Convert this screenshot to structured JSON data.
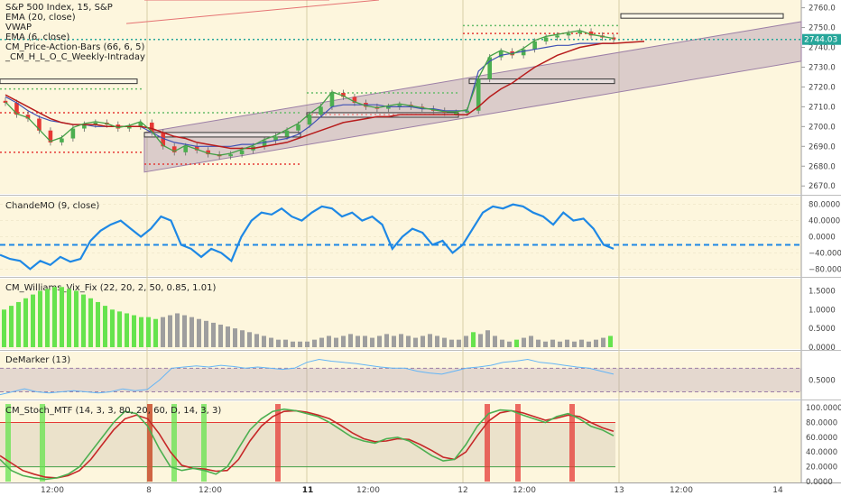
{
  "chart_data": [
    {
      "type": "candlestick",
      "panel": "main",
      "legend": [
        "S&P 500 Index, 15, S&P",
        "EMA (20, close)",
        "VWAP",
        "EMA (6, close)",
        "CM_Price-Action-Bars (66, 6, 5)",
        "_CM_H_L_O_C_Weekly-Intraday"
      ],
      "yticks": [
        2670,
        2680,
        2690,
        2700,
        2710,
        2720,
        2730,
        2740,
        2750,
        2760
      ],
      "ylim": [
        2666,
        2763
      ],
      "last_price": "2744.03",
      "colors": {
        "up": "#4caf50",
        "down": "#e53935",
        "ema20": "#b71c1c",
        "ema6": "#43a047",
        "vwap": "#3f51b5",
        "channel": "#9c7fa6",
        "last_price_bg": "#26a69a"
      },
      "close_path": [
        2712,
        2706,
        2704,
        2698,
        2692,
        2694,
        2699,
        2701,
        2702,
        2701,
        2699,
        2700,
        2702,
        2697,
        2690,
        2687,
        2690,
        2688,
        2686,
        2685,
        2686,
        2688,
        2690,
        2693,
        2695,
        2698,
        2701,
        2706,
        2710,
        2717,
        2715,
        2712,
        2710,
        2709,
        2710,
        2711,
        2710,
        2709,
        2708,
        2707,
        2707,
        2708,
        2724,
        2735,
        2738,
        2736,
        2739,
        2743,
        2745,
        2746,
        2747,
        2748,
        2746,
        2745,
        2744
      ],
      "ema20_path": [
        2716,
        2713,
        2710,
        2707,
        2704,
        2702,
        2701,
        2701,
        2701,
        2700,
        2700,
        2700,
        2700,
        2699,
        2697,
        2695,
        2694,
        2692,
        2691,
        2690,
        2689,
        2689,
        2689,
        2690,
        2691,
        2692,
        2694,
        2696,
        2698,
        2700,
        2702,
        2703,
        2704,
        2705,
        2705,
        2706,
        2706,
        2706,
        2706,
        2706,
        2706,
        2706,
        2710,
        2715,
        2719,
        2722,
        2726,
        2730,
        2733,
        2736,
        2738,
        2740,
        2741,
        2742,
        2742
      ],
      "vwap_path": [
        2715,
        2712,
        2708,
        2705,
        2703,
        2702,
        2701,
        2701,
        2700,
        2700,
        2700,
        2700,
        2700,
        2697,
        2694,
        2692,
        2691,
        2690,
        2690,
        2690,
        2690,
        2691,
        2691,
        2692,
        2693,
        2694,
        2696,
        2700,
        2705,
        2710,
        2711,
        2711,
        2711,
        2711,
        2710,
        2710,
        2710,
        2709,
        2709,
        2708,
        2708,
        2708,
        2728,
        2733,
        2736,
        2737,
        2738,
        2739,
        2740,
        2741,
        2741,
        2742,
        2742,
        2742,
        2742
      ]
    },
    {
      "type": "line",
      "panel": "chande",
      "legend": "ChandeMO (9, close)",
      "yticks": [
        "80.0000",
        "40.0000",
        "0.0000",
        "−40.0000",
        "−80.0000"
      ],
      "ylim": [
        -95,
        95
      ],
      "zero_level": -20,
      "values": [
        -45,
        -55,
        -60,
        -80,
        -60,
        -70,
        -50,
        -62,
        -55,
        -10,
        15,
        30,
        40,
        20,
        0,
        20,
        50,
        40,
        -20,
        -30,
        -50,
        -30,
        -40,
        -60,
        0,
        40,
        60,
        55,
        70,
        50,
        40,
        60,
        75,
        70,
        50,
        60,
        40,
        50,
        30,
        -30,
        0,
        20,
        10,
        -20,
        -10,
        -40,
        -20,
        20,
        60,
        75,
        70,
        80,
        75,
        60,
        50,
        30,
        60,
        40,
        45,
        20,
        -20,
        -30
      ]
    },
    {
      "type": "bar",
      "panel": "vix",
      "legend": "CM_Williams_Vix_Fix (22, 20, 2, 50, 0.85, 1.01)",
      "yticks": [
        "1.5000",
        "1.0000",
        "0.5000",
        "0.0000"
      ],
      "ylim": [
        0,
        1.75
      ],
      "colors": {
        "high": "#66e34d",
        "normal": "#9e9e9e"
      },
      "values": [
        1.0,
        1.1,
        1.2,
        1.3,
        1.4,
        1.5,
        1.55,
        1.6,
        1.6,
        1.55,
        1.5,
        1.4,
        1.3,
        1.2,
        1.1,
        1.0,
        0.95,
        0.9,
        0.85,
        0.8,
        0.8,
        0.75,
        0.8,
        0.85,
        0.9,
        0.85,
        0.8,
        0.75,
        0.7,
        0.65,
        0.6,
        0.55,
        0.5,
        0.45,
        0.4,
        0.35,
        0.3,
        0.25,
        0.2,
        0.2,
        0.15,
        0.15,
        0.15,
        0.2,
        0.25,
        0.3,
        0.25,
        0.3,
        0.35,
        0.3,
        0.3,
        0.25,
        0.3,
        0.35,
        0.3,
        0.35,
        0.3,
        0.25,
        0.3,
        0.35,
        0.3,
        0.25,
        0.2,
        0.2,
        0.3,
        0.4,
        0.35,
        0.45,
        0.3,
        0.2,
        0.15,
        0.2,
        0.25,
        0.3,
        0.2,
        0.15,
        0.2,
        0.15,
        0.2,
        0.15,
        0.2,
        0.15,
        0.2,
        0.25,
        0.3
      ],
      "high_flags": [
        1,
        1,
        1,
        1,
        1,
        1,
        1,
        1,
        1,
        1,
        1,
        1,
        1,
        1,
        1,
        1,
        1,
        1,
        1,
        1,
        1,
        1,
        0,
        0,
        0,
        0,
        0,
        0,
        0,
        0,
        0,
        0,
        0,
        0,
        0,
        0,
        0,
        0,
        0,
        0,
        0,
        0,
        0,
        0,
        0,
        0,
        0,
        0,
        0,
        0,
        0,
        0,
        0,
        0,
        0,
        0,
        0,
        0,
        0,
        0,
        0,
        0,
        0,
        0,
        0,
        1,
        0,
        0,
        0,
        0,
        0,
        1,
        0,
        0,
        0,
        0,
        0,
        0,
        0,
        0,
        0,
        0,
        0,
        0,
        1
      ]
    },
    {
      "type": "line",
      "panel": "demarker",
      "legend": "DeMarker (13)",
      "yticks": [
        "0.5000"
      ],
      "ylim": [
        0.2,
        0.95
      ],
      "band": [
        0.3,
        0.7
      ],
      "values": [
        0.25,
        0.3,
        0.35,
        0.3,
        0.28,
        0.3,
        0.32,
        0.3,
        0.28,
        0.3,
        0.35,
        0.32,
        0.34,
        0.5,
        0.7,
        0.72,
        0.74,
        0.72,
        0.75,
        0.73,
        0.7,
        0.72,
        0.7,
        0.68,
        0.7,
        0.8,
        0.85,
        0.82,
        0.8,
        0.78,
        0.75,
        0.72,
        0.7,
        0.7,
        0.65,
        0.62,
        0.6,
        0.65,
        0.7,
        0.72,
        0.75,
        0.8,
        0.82,
        0.85,
        0.8,
        0.78,
        0.75,
        0.72,
        0.7,
        0.65,
        0.6
      ]
    },
    {
      "type": "line",
      "panel": "stoch",
      "legend": "CM_Stoch_MTF (14, 3, 3, 80, 20, 60, D, 14, 3, 3)",
      "yticks": [
        "100.0000",
        "80.0000",
        "60.0000",
        "40.0000",
        "20.0000",
        "0.0000"
      ],
      "ylim": [
        0,
        105
      ],
      "levels": [
        80,
        20
      ],
      "k": [
        30,
        15,
        8,
        5,
        3,
        5,
        10,
        20,
        40,
        60,
        80,
        95,
        92,
        75,
        45,
        20,
        15,
        18,
        15,
        10,
        20,
        45,
        70,
        85,
        95,
        98,
        96,
        92,
        88,
        80,
        70,
        60,
        55,
        52,
        58,
        60,
        55,
        45,
        35,
        28,
        30,
        50,
        75,
        92,
        97,
        96,
        90,
        85,
        80,
        88,
        92,
        85,
        75,
        70,
        62
      ],
      "d": [
        35,
        25,
        15,
        10,
        6,
        5,
        8,
        15,
        30,
        50,
        70,
        85,
        90,
        85,
        65,
        40,
        22,
        18,
        17,
        14,
        15,
        30,
        55,
        75,
        88,
        95,
        96,
        94,
        90,
        85,
        76,
        66,
        58,
        54,
        55,
        58,
        57,
        50,
        42,
        33,
        30,
        40,
        62,
        82,
        93,
        96,
        93,
        88,
        83,
        86,
        90,
        88,
        80,
        73,
        68
      ],
      "green_markers": [
        2,
        8,
        24,
        27,
        31
      ],
      "red_markers": [
        20,
        37,
        68,
        72,
        81
      ]
    }
  ],
  "x_axis": {
    "labels": [
      "12:00",
      "8",
      "12:00",
      "11",
      "12:00",
      "12",
      "12:00",
      "13",
      "12:00",
      "14"
    ],
    "bold": [
      false,
      false,
      false,
      true,
      false,
      false,
      false,
      false,
      false,
      false
    ]
  }
}
